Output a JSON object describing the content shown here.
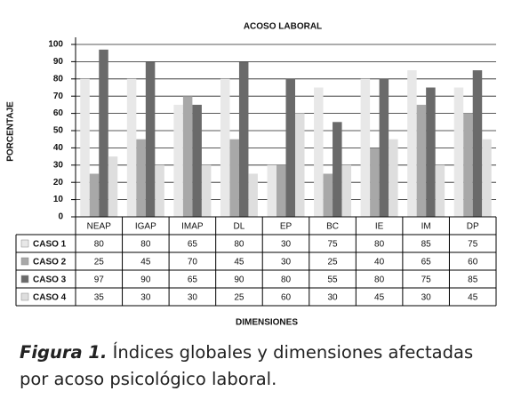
{
  "chart_data": {
    "type": "bar",
    "title": "ACOSO LABORAL",
    "y_label": "PORCENTAJE",
    "x_label": "DIMENSIONES",
    "categories": [
      "NEAP",
      "IGAP",
      "IMAP",
      "DL",
      "EP",
      "BC",
      "IE",
      "IM",
      "DP"
    ],
    "series": [
      {
        "name": "CASO 1",
        "color": "#e8e8e8",
        "values": [
          80,
          80,
          65,
          80,
          30,
          75,
          80,
          85,
          75
        ]
      },
      {
        "name": "CASO 2",
        "color": "#a8a8a8",
        "values": [
          25,
          45,
          70,
          45,
          30,
          25,
          40,
          65,
          60
        ]
      },
      {
        "name": "CASO 3",
        "color": "#6a6a6a",
        "values": [
          97,
          90,
          65,
          90,
          80,
          55,
          80,
          75,
          85
        ]
      },
      {
        "name": "CASO 4",
        "color": "#dedede",
        "values": [
          35,
          30,
          30,
          25,
          60,
          30,
          45,
          30,
          45
        ]
      }
    ],
    "ylim": [
      0,
      100
    ],
    "yticks": [
      0,
      10,
      20,
      30,
      40,
      50,
      60,
      70,
      80,
      90,
      100
    ],
    "grid": true
  },
  "caption": {
    "label": "Figura 1.",
    "text": "Índices globales y dimensiones afectadas por acoso psicológico laboral."
  }
}
